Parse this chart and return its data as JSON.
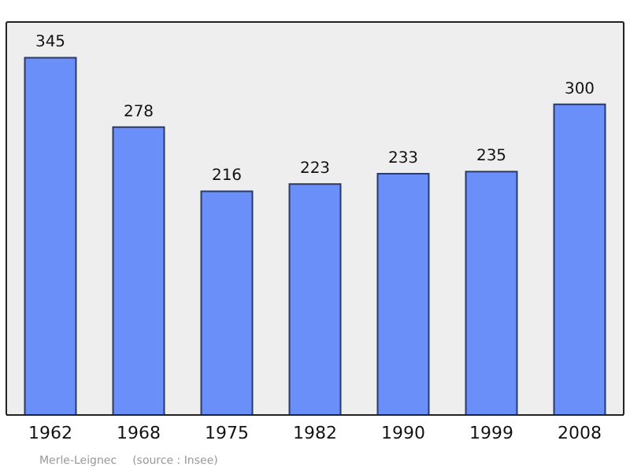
{
  "chart_data": {
    "type": "bar",
    "categories": [
      "1962",
      "1968",
      "1975",
      "1982",
      "1990",
      "1999",
      "2008"
    ],
    "values": [
      345,
      278,
      216,
      223,
      233,
      235,
      300
    ],
    "color": "#6b8ff8",
    "data_labels": true,
    "relative": false,
    "annotations": [
      "Merle-Leignec",
      "(source : Insee)"
    ]
  }
}
